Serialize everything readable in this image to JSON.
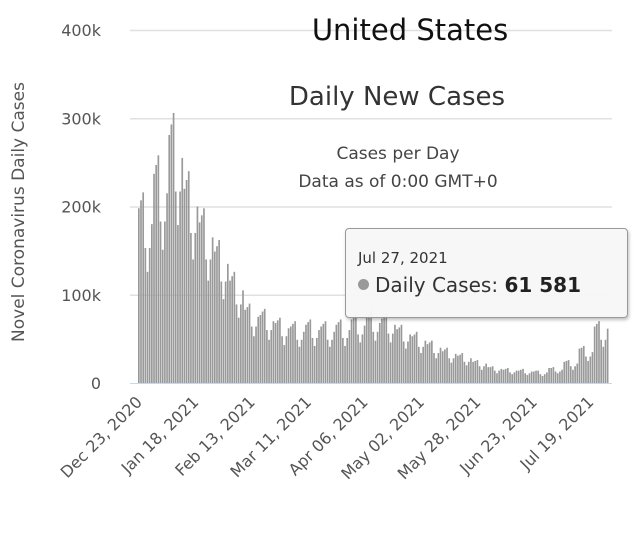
{
  "chart_data": {
    "type": "bar",
    "title": "United States",
    "subtitle": "Daily New Cases",
    "caption_lines": [
      "Cases per Day",
      "Data as of 0:00 GMT+0"
    ],
    "xlabel": "",
    "ylabel": "Novel Coronavirus Daily Cases",
    "start_date": "Dec 23, 2020",
    "end_date": "Jul 27, 2021",
    "x_tick_labels": [
      "Dec 23, 2020",
      "Jan 18, 2021",
      "Feb 13, 2021",
      "Mar 11, 2021",
      "Apr 06, 2021",
      "May 02, 2021",
      "May 28, 2021",
      "Jun 23, 2021",
      "Jul 19, 2021"
    ],
    "x_tick_interval_days": 26,
    "y_tick_labels": [
      "0",
      "100k",
      "200k",
      "300k",
      "400k"
    ],
    "ylim": [
      0,
      400000
    ],
    "grid": true,
    "bar_color": "#999999",
    "values_in_thousands": [
      198,
      207,
      216,
      153,
      126,
      153,
      180,
      237,
      247,
      258,
      183,
      151,
      183,
      215,
      281,
      293,
      306,
      217,
      179,
      217,
      255,
      220,
      230,
      240,
      170,
      140,
      170,
      200,
      182,
      190,
      198,
      140,
      116,
      140,
      165,
      149,
      155,
      162,
      115,
      95,
      115,
      135,
      116,
      121,
      126,
      89,
      74,
      89,
      105,
      83,
      86,
      90,
      64,
      53,
      64,
      75,
      77,
      81,
      84,
      60,
      49,
      60,
      70,
      68,
      71,
      74,
      53,
      43,
      53,
      62,
      64,
      67,
      70,
      49,
      41,
      49,
      58,
      66,
      69,
      72,
      51,
      42,
      51,
      60,
      64,
      67,
      70,
      49,
      41,
      49,
      58,
      66,
      69,
      72,
      51,
      42,
      51,
      60,
      72,
      75,
      78,
      55,
      46,
      55,
      65,
      75,
      78,
      82,
      58,
      48,
      58,
      68,
      73,
      76,
      79,
      56,
      46,
      56,
      66,
      61,
      63,
      66,
      47,
      39,
      47,
      55,
      53,
      55,
      58,
      41,
      34,
      41,
      48,
      44,
      46,
      48,
      34,
      28,
      34,
      40,
      36,
      38,
      40,
      28,
      23,
      28,
      33,
      31,
      32,
      34,
      24,
      20,
      24,
      28,
      24,
      25,
      26,
      19,
      15,
      19,
      22,
      18,
      18,
      19,
      14,
      11,
      14,
      16,
      15,
      16,
      17,
      12,
      10,
      12,
      14,
      14,
      15,
      16,
      11,
      9,
      11,
      13,
      13,
      14,
      14,
      10,
      8,
      10,
      12,
      17,
      17,
      18,
      13,
      11,
      13,
      15,
      24,
      25,
      26,
      19,
      15,
      19,
      22,
      39,
      40,
      42,
      30,
      25,
      30,
      35,
      64,
      67,
      70,
      49,
      41,
      49,
      61.581
    ],
    "tooltip": {
      "date": "Jul 27, 2021",
      "series_label": "Daily Cases:",
      "value": "61 581",
      "value_number": 61581
    }
  }
}
